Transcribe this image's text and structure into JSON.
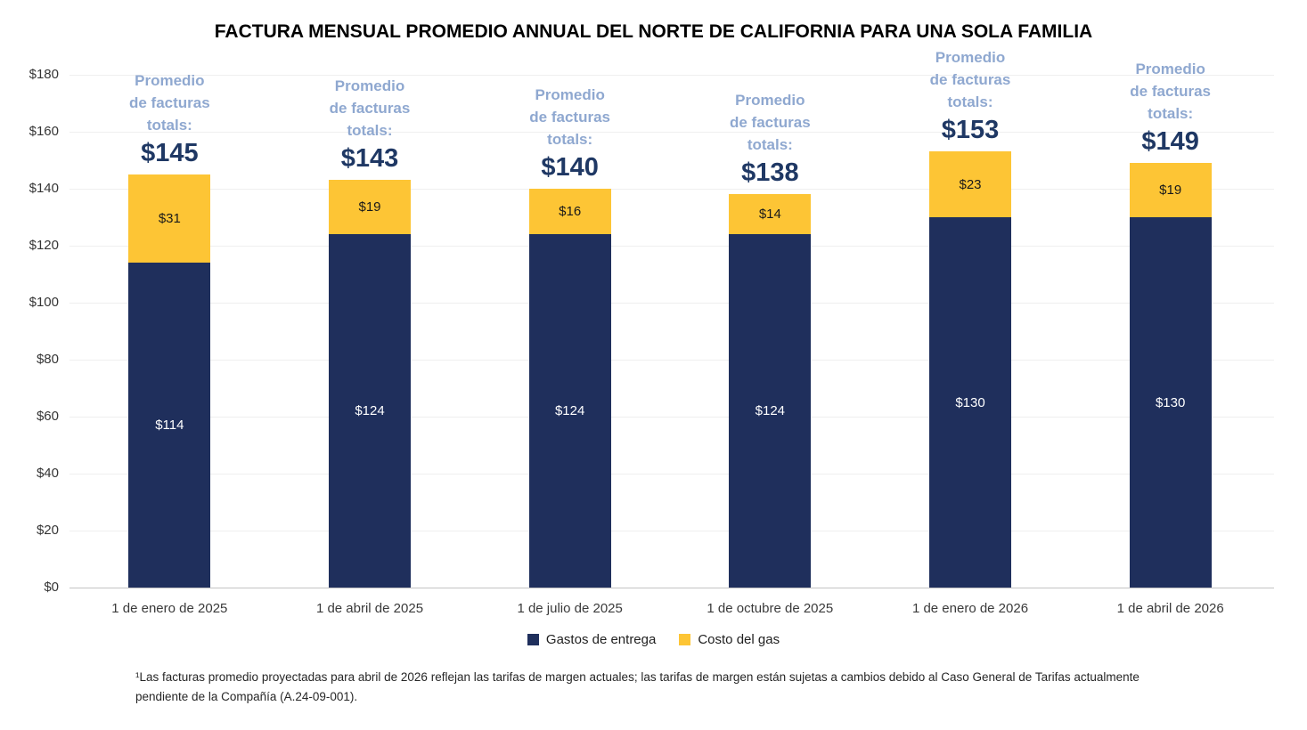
{
  "title": "FACTURA MENSUAL PROMEDIO ANNUAL DEL NORTE DE CALIFORNIA PARA UNA SOLA FAMILIA",
  "footnote": "¹Las facturas promedio proyectadas para abril de 2026 reflejan las tarifas de margen actuales; las tarifas de margen están sujetas a cambios debido al Caso General de Tarifas actualmente pendiente de la Compañía (A.24-09-001).",
  "colors": {
    "delivery": "#1F2F5C",
    "gas": "#FDC535",
    "annotation_label": "#8FA8D0",
    "annotation_total": "#1F3864"
  },
  "chart_data": {
    "type": "bar",
    "stacked": true,
    "title": "FACTURA MENSUAL PROMEDIO ANNUAL DEL NORTE DE CALIFORNIA PARA UNA SOLA FAMILIA",
    "categories": [
      "1 de enero de 2025",
      "1 de abril de 2025",
      "1 de julio de 2025",
      "1 de octubre de 2025",
      "1 de enero de 2026",
      "1 de abril de 2026"
    ],
    "series": [
      {
        "name": "Gastos de entrega",
        "color": "#1F2F5C",
        "values": [
          114,
          124,
          124,
          124,
          130,
          130
        ]
      },
      {
        "name": "Costo del gas",
        "color": "#FDC535",
        "values": [
          31,
          19,
          16,
          14,
          23,
          19
        ]
      }
    ],
    "totals": [
      145,
      143,
      140,
      138,
      153,
      149
    ],
    "annotation_lines": [
      "Promedio",
      "de facturas",
      "totals:"
    ],
    "value_prefix": "$",
    "xlabel": "",
    "ylabel": "",
    "ylim": [
      0,
      180
    ],
    "ytick_step": 20,
    "grid": true,
    "legend_position": "bottom"
  }
}
